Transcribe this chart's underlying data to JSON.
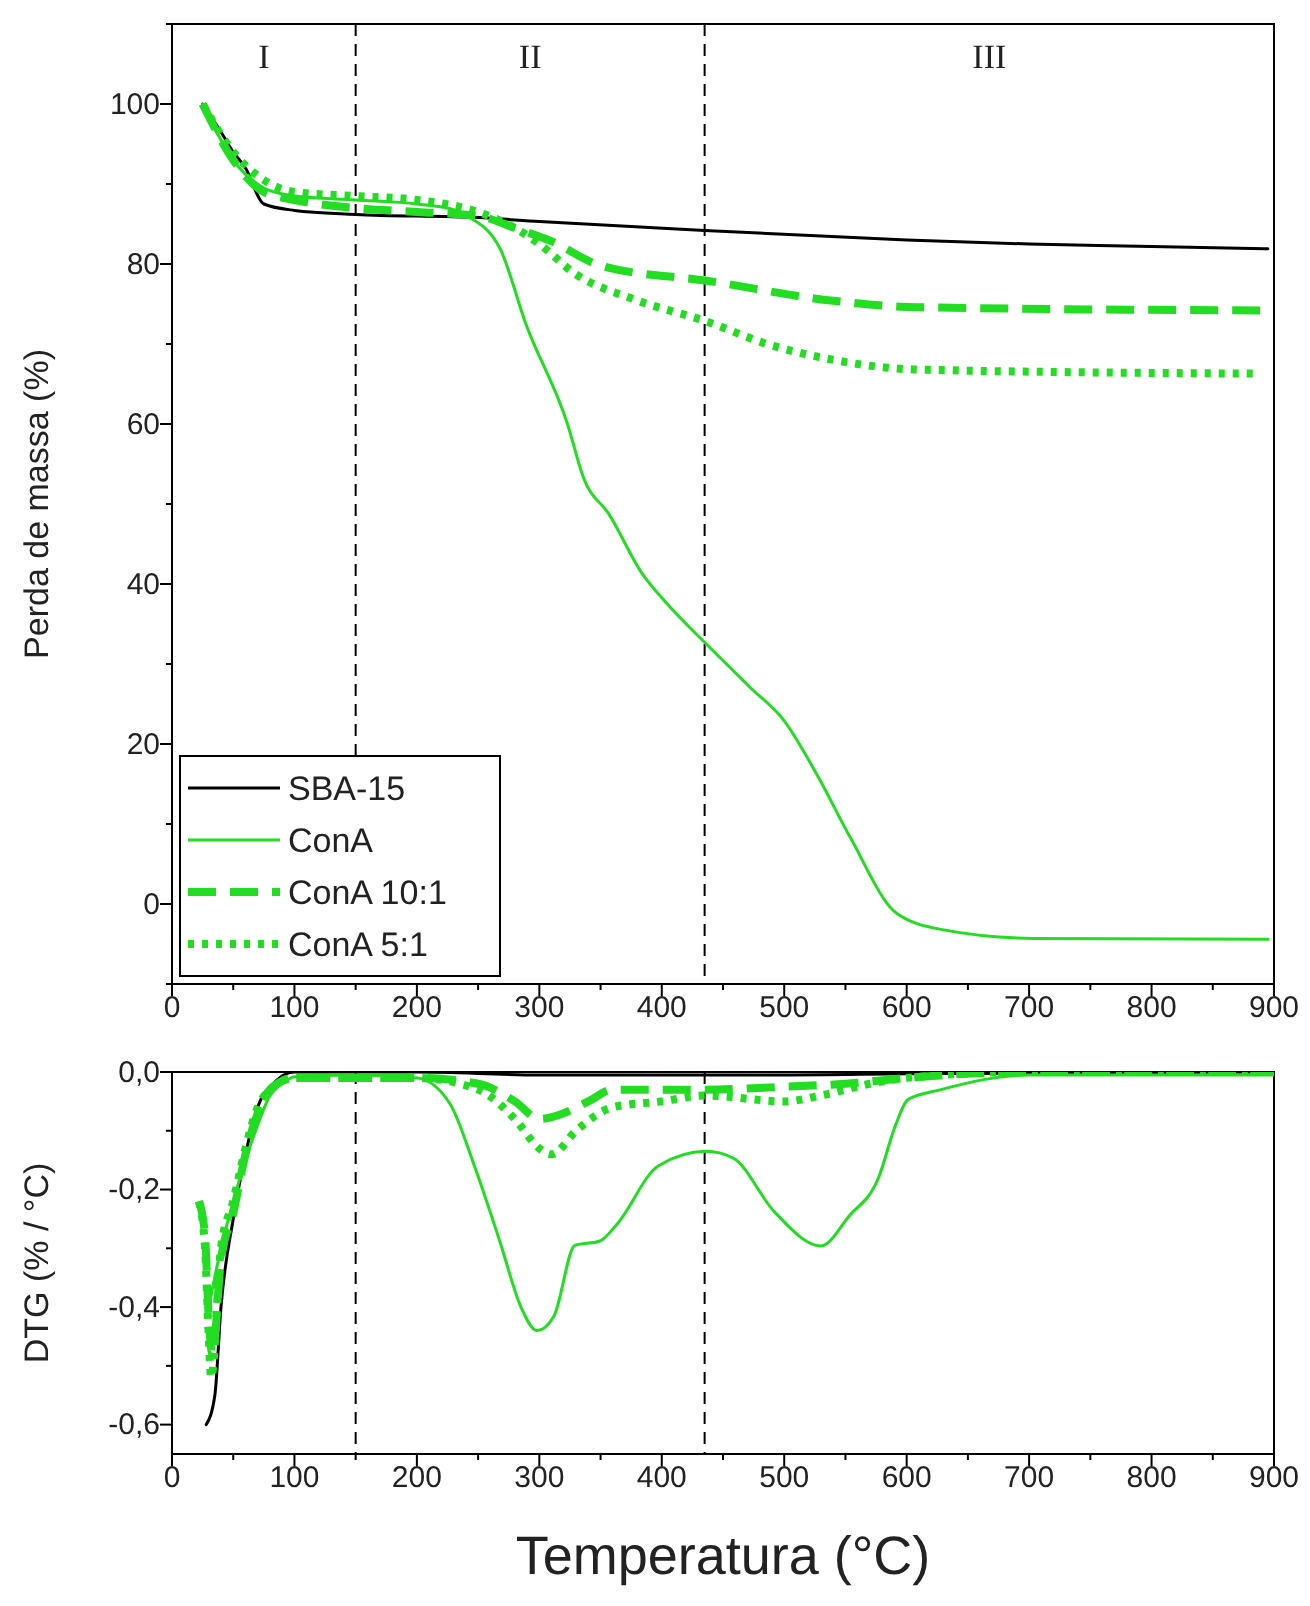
{
  "chart_data": [
    {
      "type": "line",
      "ylabel": "Perda de massa (%)",
      "xlim": [
        0,
        900
      ],
      "xticks": [
        0,
        {
          "value": 50,
          "label": null
        },
        100,
        {
          "value": 150,
          "label": null
        },
        200,
        {
          "value": 250,
          "label": null
        },
        300,
        {
          "value": 350,
          "label": null
        },
        400,
        {
          "value": 450,
          "label": null
        },
        500,
        {
          "value": 550,
          "label": null
        },
        600,
        {
          "value": 650,
          "label": null
        },
        700,
        {
          "value": 750,
          "label": null
        },
        800,
        {
          "value": 850,
          "label": null
        },
        900
      ],
      "ylim": [
        -10,
        110
      ],
      "yticks": [
        {
          "value": -10,
          "label": null
        },
        0,
        {
          "value": 10,
          "label": null
        },
        20,
        {
          "value": 30,
          "label": null
        },
        40,
        {
          "value": 50,
          "label": null
        },
        60,
        {
          "value": 70,
          "label": null
        },
        80,
        {
          "value": 90,
          "label": null
        },
        100,
        {
          "value": 110,
          "label": null
        }
      ],
      "grid": false,
      "legend": "bottom left",
      "ref_lines": [
        {
          "axis": "x",
          "value": 150,
          "color": "#000000",
          "line_style": "dashed"
        },
        {
          "axis": "x",
          "value": 435,
          "color": "#000000",
          "line_style": "dashed"
        }
      ],
      "annotations": [
        "I",
        "II",
        "III"
      ],
      "series": [
        {
          "name": "SBA-15",
          "color": "#000000",
          "line_style": "solid",
          "x": [
            25,
            40,
            50,
            60,
            75,
            100,
            150,
            250,
            300,
            435,
            600,
            700,
            800,
            895
          ],
          "values": [
            100,
            96.5,
            94,
            92,
            87.5,
            86.7,
            86.2,
            85.8,
            85.3,
            84.2,
            83,
            82.5,
            82.2,
            81.9
          ]
        },
        {
          "name": "ConA",
          "color": "#22dd22",
          "line_style": "solid",
          "x": [
            25,
            50,
            75,
            100,
            150,
            200,
            230,
            241,
            268,
            289,
            323,
            336,
            357,
            384,
            404,
            437,
            472,
            500,
            527,
            554,
            592,
            629,
            704,
            895
          ],
          "values": [
            100,
            93,
            89.5,
            88.5,
            88,
            87.5,
            86.8,
            86,
            81.9,
            72.5,
            60,
            53.3,
            48.7,
            41.3,
            37.6,
            32.4,
            27.1,
            22.9,
            16.1,
            8.3,
            -1.2,
            -3.2,
            -4.3,
            -4.4
          ]
        },
        {
          "name": "ConA 10:1",
          "color": "#22dd22",
          "line_style": "dashed",
          "x": [
            25,
            50,
            75,
            100,
            150,
            200,
            250,
            280,
            309,
            350,
            437,
            540,
            609,
            891
          ],
          "values": [
            100,
            93,
            89,
            88,
            87,
            86.5,
            86,
            84.5,
            82.9,
            79.8,
            77.9,
            75.4,
            74.6,
            74.2
          ]
        },
        {
          "name": "ConA 5:1",
          "color": "#22dd22",
          "line_style": "dotted",
          "x": [
            25,
            50,
            75,
            100,
            150,
            200,
            250,
            280,
            300,
            329,
            377,
            437,
            486,
            534,
            609,
            884
          ],
          "values": [
            100,
            94,
            90.5,
            89,
            88.5,
            88,
            86.5,
            84.5,
            82.5,
            78.8,
            75.6,
            72.8,
            70,
            68.2,
            66.8,
            66.3
          ]
        }
      ]
    },
    {
      "type": "line",
      "xlabel": "Temperatura (°C)",
      "ylabel": "DTG (% / °C)",
      "xlim": [
        0,
        900
      ],
      "xticks": [
        0,
        {
          "value": 50,
          "label": null
        },
        100,
        {
          "value": 150,
          "label": null
        },
        200,
        {
          "value": 250,
          "label": null
        },
        300,
        {
          "value": 350,
          "label": null
        },
        400,
        {
          "value": 450,
          "label": null
        },
        500,
        {
          "value": 550,
          "label": null
        },
        600,
        {
          "value": 650,
          "label": null
        },
        700,
        {
          "value": 750,
          "label": null
        },
        800,
        {
          "value": 850,
          "label": null
        },
        900
      ],
      "ylim": [
        -0.65,
        0
      ],
      "yticks": [
        {
          "value": -0.6,
          "label": "-0,6"
        },
        {
          "value": -0.5,
          "label": null
        },
        {
          "value": -0.4,
          "label": "-0,4"
        },
        {
          "value": -0.3,
          "label": null
        },
        {
          "value": -0.2,
          "label": "-0,2"
        },
        {
          "value": -0.1,
          "label": null
        },
        {
          "value": 0,
          "label": "0,0"
        }
      ],
      "grid": false,
      "ref_lines": [
        {
          "axis": "x",
          "value": 150,
          "color": "#000000",
          "line_style": "dashed"
        },
        {
          "axis": "x",
          "value": 435,
          "color": "#000000",
          "line_style": "dashed"
        }
      ],
      "series": [
        {
          "color": "#000000",
          "line_style": "solid",
          "x": [
            28,
            30,
            33,
            35,
            40,
            50,
            60,
            70,
            85,
            100,
            200,
            300,
            500,
            600,
            900
          ],
          "values": [
            -0.6,
            null,
            null,
            -0.55,
            -0.4,
            -0.25,
            -0.14,
            -0.06,
            -0.015,
            0,
            0,
            -0.005,
            -0.005,
            -0.003,
            0
          ]
        },
        {
          "color": "#22dd22",
          "line_style": "solid",
          "x": [
            30,
            40,
            50,
            60,
            70,
            80,
            90,
            100,
            150,
            200,
            227,
            247,
            268,
            285,
            298,
            312,
            329,
            349,
            363,
            397,
            436,
            458,
            492,
            530,
            553,
            577,
            591,
            601,
            628,
            700,
            900
          ],
          "values": [
            -0.4,
            -0.3,
            -0.22,
            -0.15,
            -0.09,
            -0.04,
            -0.02,
            -0.008,
            -0.005,
            -0.01,
            -0.054,
            -0.16,
            -0.29,
            -0.4,
            -0.44,
            -0.415,
            -0.295,
            -0.288,
            -0.26,
            -0.16,
            -0.135,
            -0.146,
            -0.238,
            -0.296,
            -0.245,
            -0.18,
            -0.09,
            -0.047,
            -0.03,
            -0.005,
            -0.005
          ]
        },
        {
          "color": "#22dd22",
          "line_style": "dashed",
          "x": [
            22,
            27,
            30,
            33,
            40,
            50,
            60,
            70,
            80,
            100,
            200,
            250,
            280,
            300,
            320,
            340,
            360,
            435,
            500,
            550,
            600,
            700,
            900
          ],
          "values": [
            -0.22,
            -0.28,
            -0.42,
            -0.48,
            -0.32,
            -0.24,
            -0.14,
            -0.07,
            -0.03,
            -0.01,
            -0.01,
            -0.02,
            -0.05,
            -0.08,
            -0.07,
            -0.05,
            -0.03,
            -0.03,
            -0.025,
            -0.02,
            -0.01,
            0,
            0
          ]
        },
        {
          "color": "#22dd22",
          "line_style": "dotted",
          "x": [
            22,
            27,
            30,
            32,
            40,
            50,
            60,
            70,
            80,
            100,
            200,
            250,
            280,
            300,
            310,
            330,
            360,
            400,
            435,
            500,
            530,
            570,
            600,
            700,
            900
          ],
          "values": [
            -0.22,
            -0.3,
            -0.45,
            -0.52,
            -0.3,
            -0.22,
            -0.13,
            -0.06,
            -0.03,
            -0.01,
            -0.01,
            -0.03,
            -0.08,
            -0.13,
            -0.14,
            -0.1,
            -0.06,
            -0.05,
            -0.04,
            -0.05,
            -0.04,
            -0.02,
            -0.01,
            0,
            0
          ]
        }
      ]
    }
  ]
}
